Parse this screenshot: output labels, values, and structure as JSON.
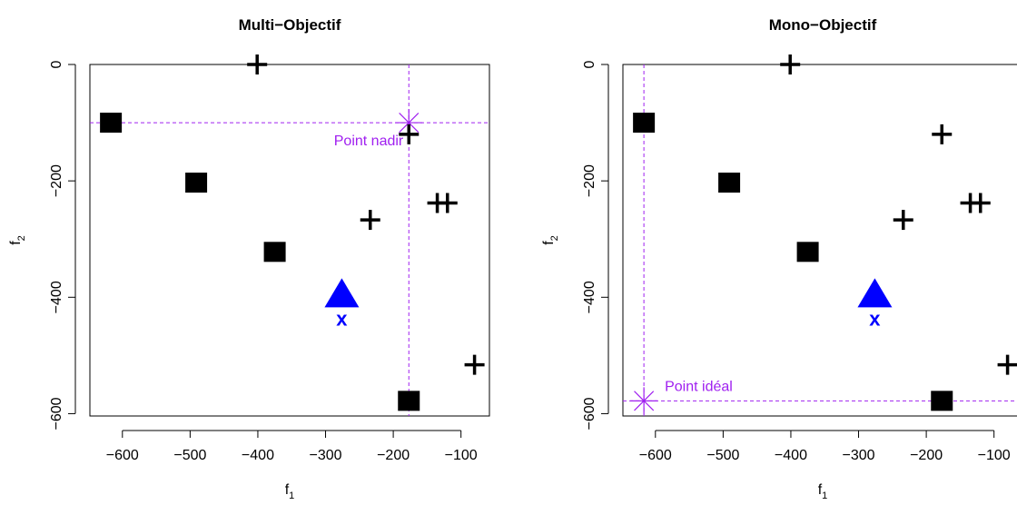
{
  "chart_data": [
    {
      "type": "scatter",
      "title": "Multi−Objectif",
      "xlabel": "f",
      "xlabel_sub": "1",
      "ylabel": "f",
      "ylabel_sub": "2",
      "xlim": [
        -648,
        -58
      ],
      "ylim": [
        -604,
        0
      ],
      "xticks": [
        -600,
        -500,
        -400,
        -300,
        -200,
        -100
      ],
      "xtick_labels": [
        "−600",
        "−500",
        "−400",
        "−300",
        "−200",
        "−100"
      ],
      "yticks": [
        -600,
        -400,
        -200,
        0
      ],
      "ytick_labels": [
        "−600",
        "−400",
        "−200",
        "0"
      ],
      "grid": false,
      "series": [
        {
          "marker": "square",
          "color": "#000000",
          "points": [
            [
              -617,
              -100
            ],
            [
              -491,
              -203
            ],
            [
              -375,
              -322
            ],
            [
              -177,
              -578
            ]
          ]
        },
        {
          "marker": "plus",
          "color": "#000000",
          "points": [
            [
              -401,
              0
            ],
            [
              -177,
              -120
            ],
            [
              -234,
              -267
            ],
            [
              -135,
              -238
            ],
            [
              -120,
              -238
            ],
            [
              -80,
              -516
            ]
          ]
        },
        {
          "marker": "triangle",
          "color": "#0000ff",
          "label": "x",
          "points": [
            [
              -276,
              -397
            ]
          ]
        }
      ],
      "reference_point": {
        "label": "Point nadir",
        "color": "#a020f0",
        "x": -177,
        "y": -100
      }
    },
    {
      "type": "scatter",
      "title": "Mono−Objectif",
      "xlabel": "f",
      "xlabel_sub": "1",
      "ylabel": "f",
      "ylabel_sub": "2",
      "xlim": [
        -648,
        -58
      ],
      "ylim": [
        -604,
        0
      ],
      "xticks": [
        -600,
        -500,
        -400,
        -300,
        -200,
        -100
      ],
      "xtick_labels": [
        "−600",
        "−500",
        "−400",
        "−300",
        "−200",
        "−100"
      ],
      "yticks": [
        -600,
        -400,
        -200,
        0
      ],
      "ytick_labels": [
        "−600",
        "−400",
        "−200",
        "0"
      ],
      "grid": false,
      "series": [
        {
          "marker": "square",
          "color": "#000000",
          "points": [
            [
              -617,
              -100
            ],
            [
              -491,
              -203
            ],
            [
              -375,
              -322
            ],
            [
              -177,
              -578
            ]
          ]
        },
        {
          "marker": "plus",
          "color": "#000000",
          "points": [
            [
              -401,
              0
            ],
            [
              -177,
              -120
            ],
            [
              -234,
              -267
            ],
            [
              -135,
              -238
            ],
            [
              -120,
              -238
            ],
            [
              -80,
              -516
            ]
          ]
        },
        {
          "marker": "triangle",
          "color": "#0000ff",
          "label": "x",
          "points": [
            [
              -276,
              -397
            ]
          ]
        }
      ],
      "reference_point": {
        "label": "Point idéal",
        "color": "#a020f0",
        "x": -617,
        "y": -578
      }
    }
  ]
}
